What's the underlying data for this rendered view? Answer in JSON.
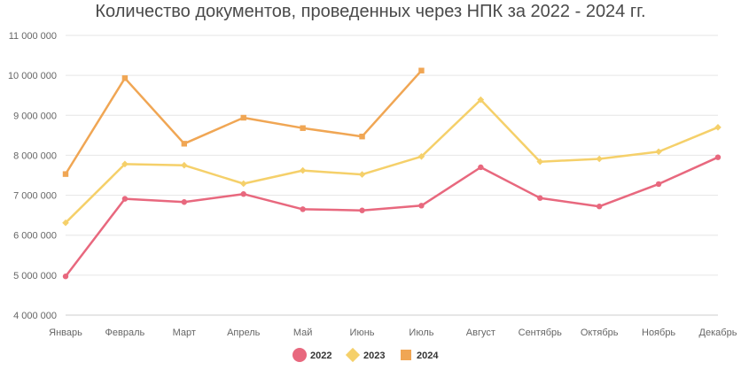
{
  "chart_data": {
    "type": "line",
    "title": "Количество документов, проведенных через НПК за 2022 - 2024 гг.",
    "xlabel": "",
    "ylabel": "",
    "categories": [
      "Январь",
      "Февраль",
      "Март",
      "Апрель",
      "Май",
      "Июнь",
      "Июль",
      "Август",
      "Сентябрь",
      "Октябрь",
      "Ноябрь",
      "Декабрь"
    ],
    "ylim": [
      4000000,
      11000000
    ],
    "yticks": [
      4000000,
      5000000,
      6000000,
      7000000,
      8000000,
      9000000,
      10000000,
      11000000
    ],
    "ytick_labels": [
      "4 000 000",
      "5 000 000",
      "6 000 000",
      "7 000 000",
      "8 000 000",
      "9 000 000",
      "10 000 000",
      "11 000 000"
    ],
    "grid": "horizontal",
    "legend_position": "bottom-center",
    "series": [
      {
        "name": "2022",
        "color": "#e8687e",
        "marker": "circle",
        "values": [
          4970000,
          6910000,
          6830000,
          7030000,
          6650000,
          6620000,
          6740000,
          7700000,
          6930000,
          6720000,
          7280000,
          7950000
        ]
      },
      {
        "name": "2023",
        "color": "#f5d06a",
        "marker": "diamond",
        "values": [
          6310000,
          7780000,
          7750000,
          7290000,
          7620000,
          7520000,
          7970000,
          9390000,
          7840000,
          7910000,
          8090000,
          8700000
        ]
      },
      {
        "name": "2024",
        "color": "#f0a654",
        "marker": "square",
        "values": [
          7530000,
          9930000,
          8290000,
          8940000,
          8680000,
          8470000,
          10120000,
          null,
          null,
          null,
          null,
          null
        ]
      }
    ]
  }
}
